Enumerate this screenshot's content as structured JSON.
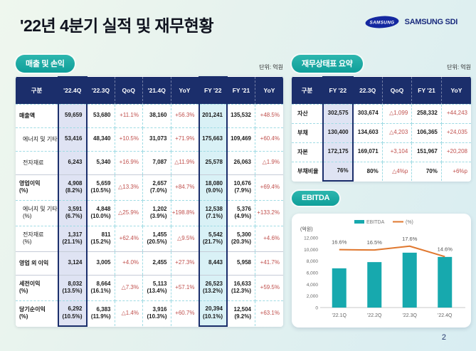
{
  "title": "'22년 4분기 실적 및 재무현황",
  "brand": {
    "logo_text": "SAMSUNG",
    "name": "SAMSUNG SDI"
  },
  "page_number": "2",
  "colors": {
    "accent_teal": "#14a9a3",
    "header_navy": "#1b2e6b",
    "negative_red": "#c0504d",
    "bar_teal": "#17a9ae",
    "line_orange": "#e0782f",
    "highlight_lavender": "#dfe3f3",
    "highlight_cyan": "#d9f1f6"
  },
  "sales_section": {
    "badge": "매출 및 손익",
    "unit": "단위: 억원",
    "table": {
      "headers": [
        "구분",
        "'22.4Q",
        "'22.3Q",
        "QoQ",
        "'21.4Q",
        "YoY",
        "FY '22",
        "FY '21",
        "YoY"
      ],
      "highlight": [
        {
          "col": 1,
          "style": "lav"
        },
        {
          "col": 6,
          "style": "cyan"
        }
      ],
      "rows": [
        {
          "label": "매출액",
          "bold": true,
          "cells": [
            "59,659",
            "53,680",
            "+11.1%",
            "38,160",
            "+56.3%",
            "201,241",
            "135,532",
            "+48.5%"
          ]
        },
        {
          "label": "에너지 및 기타",
          "indent": true,
          "cells": [
            "53,416",
            "48,340",
            "+10.5%",
            "31,073",
            "+71.9%",
            "175,663",
            "109,469",
            "+60.4%"
          ]
        },
        {
          "label": "전자재료",
          "indent": true,
          "cells": [
            "6,243",
            "5,340",
            "+16.9%",
            "7,087",
            "△11.9%",
            "25,578",
            "26,063",
            "△1.9%"
          ]
        },
        {
          "label": "영업이익",
          "label2": "(%)",
          "bold": true,
          "cells": [
            [
              "4,908",
              "(8.2%)"
            ],
            [
              "5,659",
              "(10.5%)"
            ],
            "△13.3%",
            [
              "2,657",
              "(7.0%)"
            ],
            "+84.7%",
            [
              "18,080",
              "(9.0%)"
            ],
            [
              "10,676",
              "(7.9%)"
            ],
            "+69.4%"
          ]
        },
        {
          "label": "에너지 및 기타",
          "label2": "(%)",
          "indent": true,
          "cells": [
            [
              "3,591",
              "(6.7%)"
            ],
            [
              "4,848",
              "(10.0%)"
            ],
            "△25.9%",
            [
              "1,202",
              "(3.9%)"
            ],
            "+198.8%",
            [
              "12,538",
              "(7.1%)"
            ],
            [
              "5,376",
              "(4.9%)"
            ],
            "+133.2%"
          ]
        },
        {
          "label": "전자재료",
          "label2": "(%)",
          "indent": true,
          "cells": [
            [
              "1,317",
              "(21.1%)"
            ],
            [
              "811",
              "(15.2%)"
            ],
            "+62.4%",
            [
              "1,455",
              "(20.5%)"
            ],
            "△9.5%",
            [
              "5,542",
              "(21.7%)"
            ],
            [
              "5,300",
              "(20.3%)"
            ],
            "+4.6%"
          ]
        },
        {
          "label": "영업 외 이익",
          "bold": true,
          "cells": [
            "3,124",
            "3,005",
            "+4.0%",
            "2,455",
            "+27.3%",
            "8,443",
            "5,958",
            "+41.7%"
          ]
        },
        {
          "label": "세전이익",
          "label2": "(%)",
          "bold": true,
          "cells": [
            [
              "8,032",
              "(13.5%)"
            ],
            [
              "8,664",
              "(16.1%)"
            ],
            "△7.3%",
            [
              "5,113",
              "(13.4%)"
            ],
            "+57.1%",
            [
              "26,523",
              "(13.2%)"
            ],
            [
              "16,633",
              "(12.3%)"
            ],
            "+59.5%"
          ]
        },
        {
          "label": "당기순이익",
          "label2": "(%)",
          "bold": true,
          "cells": [
            [
              "6,292",
              "(10.5%)"
            ],
            [
              "6,383",
              "(11.9%)"
            ],
            "△1.4%",
            [
              "3,916",
              "(10.3%)"
            ],
            "+60.7%",
            [
              "20,394",
              "(10.1%)"
            ],
            [
              "12,504",
              "(9.2%)"
            ],
            "+63.1%"
          ]
        }
      ]
    }
  },
  "balance_section": {
    "badge": "재무상태표 요약",
    "unit": "단위: 억원",
    "table": {
      "headers": [
        "구분",
        "FY '22",
        "22.3Q",
        "QoQ",
        "FY '21",
        "YoY"
      ],
      "highlight": [
        {
          "col": 1,
          "style": "lav"
        }
      ],
      "rows": [
        {
          "label": "자산",
          "bold": true,
          "cells": [
            "302,575",
            "303,674",
            "△1,099",
            "258,332",
            "+44,243"
          ]
        },
        {
          "label": "부채",
          "bold": true,
          "cells": [
            "130,400",
            "134,603",
            "△4,203",
            "106,365",
            "+24,035"
          ]
        },
        {
          "label": "자본",
          "bold": true,
          "cells": [
            "172,175",
            "169,071",
            "+3,104",
            "151,967",
            "+20,208"
          ]
        },
        {
          "label": "부채비율",
          "bold": true,
          "cells": [
            "76%",
            "80%",
            "△4%p",
            "70%",
            "+6%p"
          ]
        }
      ]
    }
  },
  "ebitda_section": {
    "badge": "EBITDA"
  },
  "chart_data": {
    "type": "bar",
    "title": "EBITDA",
    "categories": [
      "'22.1Q",
      "'22.2Q",
      "'22.3Q",
      "'22.4Q"
    ],
    "series": [
      {
        "name": "EBITDA",
        "type": "bar",
        "values": [
          6750,
          7820,
          9440,
          8710
        ]
      },
      {
        "name": "(%)",
        "type": "line",
        "values": [
          16.6,
          16.5,
          17.6,
          14.6
        ],
        "labels": [
          "16.6%",
          "16.5%",
          "17.6%",
          "14.6%"
        ]
      }
    ],
    "ylabel": "(억원)",
    "ylim": [
      0,
      12000
    ],
    "ytick_step": 2000,
    "y2lim": [
      0,
      20
    ],
    "legend_position": "top",
    "grid": false
  }
}
